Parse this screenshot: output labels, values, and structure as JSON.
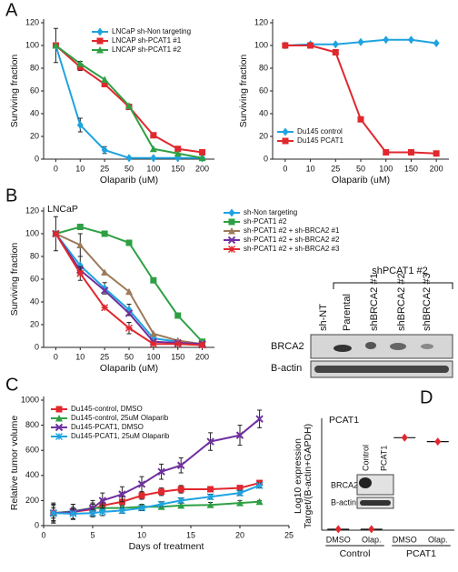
{
  "panel_labels": [
    "A",
    "B",
    "C",
    "D"
  ],
  "chart_data": [
    {
      "type": "line",
      "ylabel": "Surviving fraction",
      "xlabel": "Olaparib (uM)",
      "categories": [
        "0",
        "10",
        "25",
        "50",
        "100",
        "150",
        "200"
      ],
      "ylim": [
        0,
        120
      ],
      "yticks": [
        0,
        20,
        40,
        60,
        80,
        100,
        120
      ],
      "legend": "upper right",
      "series": [
        {
          "name": "LNCaP sh-Non targeting",
          "color": "#1fa3e0",
          "marker": "diamond",
          "values": [
            100,
            30,
            8,
            1,
            1,
            1,
            1
          ],
          "errors": [
            15,
            6,
            3,
            null,
            null,
            null,
            null
          ]
        },
        {
          "name": "LNCAP sh-PCAT1 #1",
          "color": "#e0282e",
          "marker": "square",
          "values": [
            100,
            81,
            66,
            46,
            21,
            9,
            6
          ],
          "errors": [
            null,
            3,
            null,
            null,
            2,
            null,
            null
          ]
        },
        {
          "name": "LNCAP sh-PCAT1 #2",
          "color": "#2ea043",
          "marker": "triangle",
          "values": [
            100,
            84,
            70,
            47,
            9,
            5,
            1
          ],
          "errors": [
            null,
            2,
            null,
            null,
            null,
            null,
            null
          ]
        }
      ]
    },
    {
      "type": "line",
      "ylabel": "Surviving fraction",
      "xlabel": "Olaparib (uM)",
      "categories": [
        "0",
        "10",
        "25",
        "50",
        "100",
        "150",
        "200"
      ],
      "ylim": [
        0,
        120
      ],
      "yticks": [
        0,
        20,
        40,
        60,
        80,
        100,
        120
      ],
      "legend": "lower left",
      "series": [
        {
          "name": "Du145 control",
          "color": "#1fa3e0",
          "marker": "diamond",
          "values": [
            100,
            101,
            101,
            103,
            105,
            105,
            102
          ]
        },
        {
          "name": "Du145 PCAT1",
          "color": "#e0282e",
          "marker": "square",
          "values": [
            100,
            100,
            94,
            35,
            6,
            6,
            5
          ]
        }
      ]
    },
    {
      "type": "line",
      "ylabel": "Surviving fraction",
      "xlabel": "Olaparib (uM)",
      "annotation": "LNCaP",
      "categories": [
        "0",
        "10",
        "25",
        "50",
        "100",
        "150",
        "200"
      ],
      "ylim": [
        0,
        120
      ],
      "yticks": [
        0,
        20,
        40,
        60,
        80,
        100,
        120
      ],
      "legend": "right",
      "series": [
        {
          "name": "sh-Non targeting",
          "color": "#1fa3e0",
          "marker": "diamond",
          "values": [
            100,
            72,
            52,
            33,
            8,
            5,
            3
          ],
          "errors": [
            15,
            8,
            5,
            5,
            3,
            null,
            null
          ]
        },
        {
          "name": "sh-PCAT1 #2",
          "color": "#2ea043",
          "marker": "square",
          "values": [
            100,
            106,
            100,
            92,
            59,
            28,
            5
          ]
        },
        {
          "name": "sh-PCAT1 #2 + sh-BRCA2 #1",
          "color": "#9c7a5a",
          "marker": "triangle",
          "values": [
            100,
            90,
            66,
            49,
            12,
            6,
            3
          ],
          "errors": [
            null,
            10,
            null,
            null,
            null,
            null,
            null
          ]
        },
        {
          "name": "sh-PCAT1 #2 + sh-BRCA2 #2",
          "color": "#7030a0",
          "marker": "x",
          "values": [
            100,
            68,
            50,
            30,
            5,
            4,
            3
          ]
        },
        {
          "name": "sh-PCAT1 #2 + sh-BRCA2 #3",
          "color": "#e0282e",
          "marker": "star",
          "values": [
            100,
            65,
            35,
            17,
            3,
            3,
            2
          ],
          "errors": [
            null,
            6,
            null,
            5,
            null,
            null,
            null
          ]
        }
      ]
    },
    {
      "type": "line",
      "ylabel": "Relative tumor volume",
      "xlabel": "Days of treatment",
      "x": [
        1,
        3,
        5,
        6,
        8,
        10,
        12,
        14,
        17,
        20,
        22
      ],
      "xlim": [
        0,
        25
      ],
      "xticks": [
        0,
        5,
        10,
        15,
        20,
        25
      ],
      "ylim": [
        0,
        1000
      ],
      "yticks": [
        0,
        200,
        400,
        600,
        800,
        1000
      ],
      "legend": "upper left",
      "series": [
        {
          "name": "Du145-control, DMSO",
          "color": "#e0282e",
          "marker": "square",
          "values": [
            100,
            110,
            130,
            160,
            190,
            240,
            270,
            290,
            290,
            300,
            340
          ],
          "errors": [
            80,
            60,
            50,
            40,
            40,
            30,
            30,
            30,
            20,
            20,
            20
          ]
        },
        {
          "name": "Du145-control, 25uM Olaparib",
          "color": "#2ea043",
          "marker": "triangle",
          "values": [
            100,
            115,
            140,
            140,
            140,
            150,
            150,
            160,
            165,
            180,
            190
          ],
          "errors": [
            40,
            30,
            30,
            20,
            20,
            20,
            20,
            20,
            20,
            20,
            10
          ]
        },
        {
          "name": "Du145-PCAT1, DMSO",
          "color": "#7030a0",
          "marker": "x",
          "values": [
            100,
            110,
            140,
            200,
            250,
            330,
            430,
            480,
            670,
            720,
            850
          ],
          "errors": [
            70,
            60,
            60,
            60,
            60,
            60,
            60,
            60,
            70,
            80,
            70
          ]
        },
        {
          "name": "Du145-PCAT1, 25uM Olaparib",
          "color": "#1fa3e0",
          "marker": "star",
          "values": [
            100,
            95,
            100,
            110,
            120,
            140,
            170,
            200,
            230,
            260,
            320
          ],
          "errors": [
            60,
            40,
            30,
            30,
            20,
            20,
            20,
            20,
            20,
            20,
            20
          ]
        }
      ]
    },
    {
      "type": "dot",
      "title": "PCAT1",
      "ylabel": [
        "Log10 expression",
        "Target/(B-actin+GAPDH)"
      ],
      "categories": [
        "DMSO",
        "Olap.",
        "DMSO",
        "Olap."
      ],
      "groups": [
        "Control",
        "PCAT1"
      ],
      "ylim": [
        0,
        5.5
      ],
      "color": "#e0282e",
      "values": [
        0.05,
        0.05,
        4.7,
        4.5
      ]
    }
  ],
  "blot_b": {
    "group": "shPCAT1 #2",
    "columns": [
      "sh-NT",
      "Parental",
      "shBRCA2 #1",
      "shBRCA2 #2",
      "shBRCA2 #3"
    ],
    "rows": [
      "BRCA2",
      "B-actin"
    ]
  },
  "blot_d": {
    "columns": [
      "Control",
      "PCAT1"
    ],
    "rows": [
      "BRCA2",
      "B-actin"
    ]
  }
}
